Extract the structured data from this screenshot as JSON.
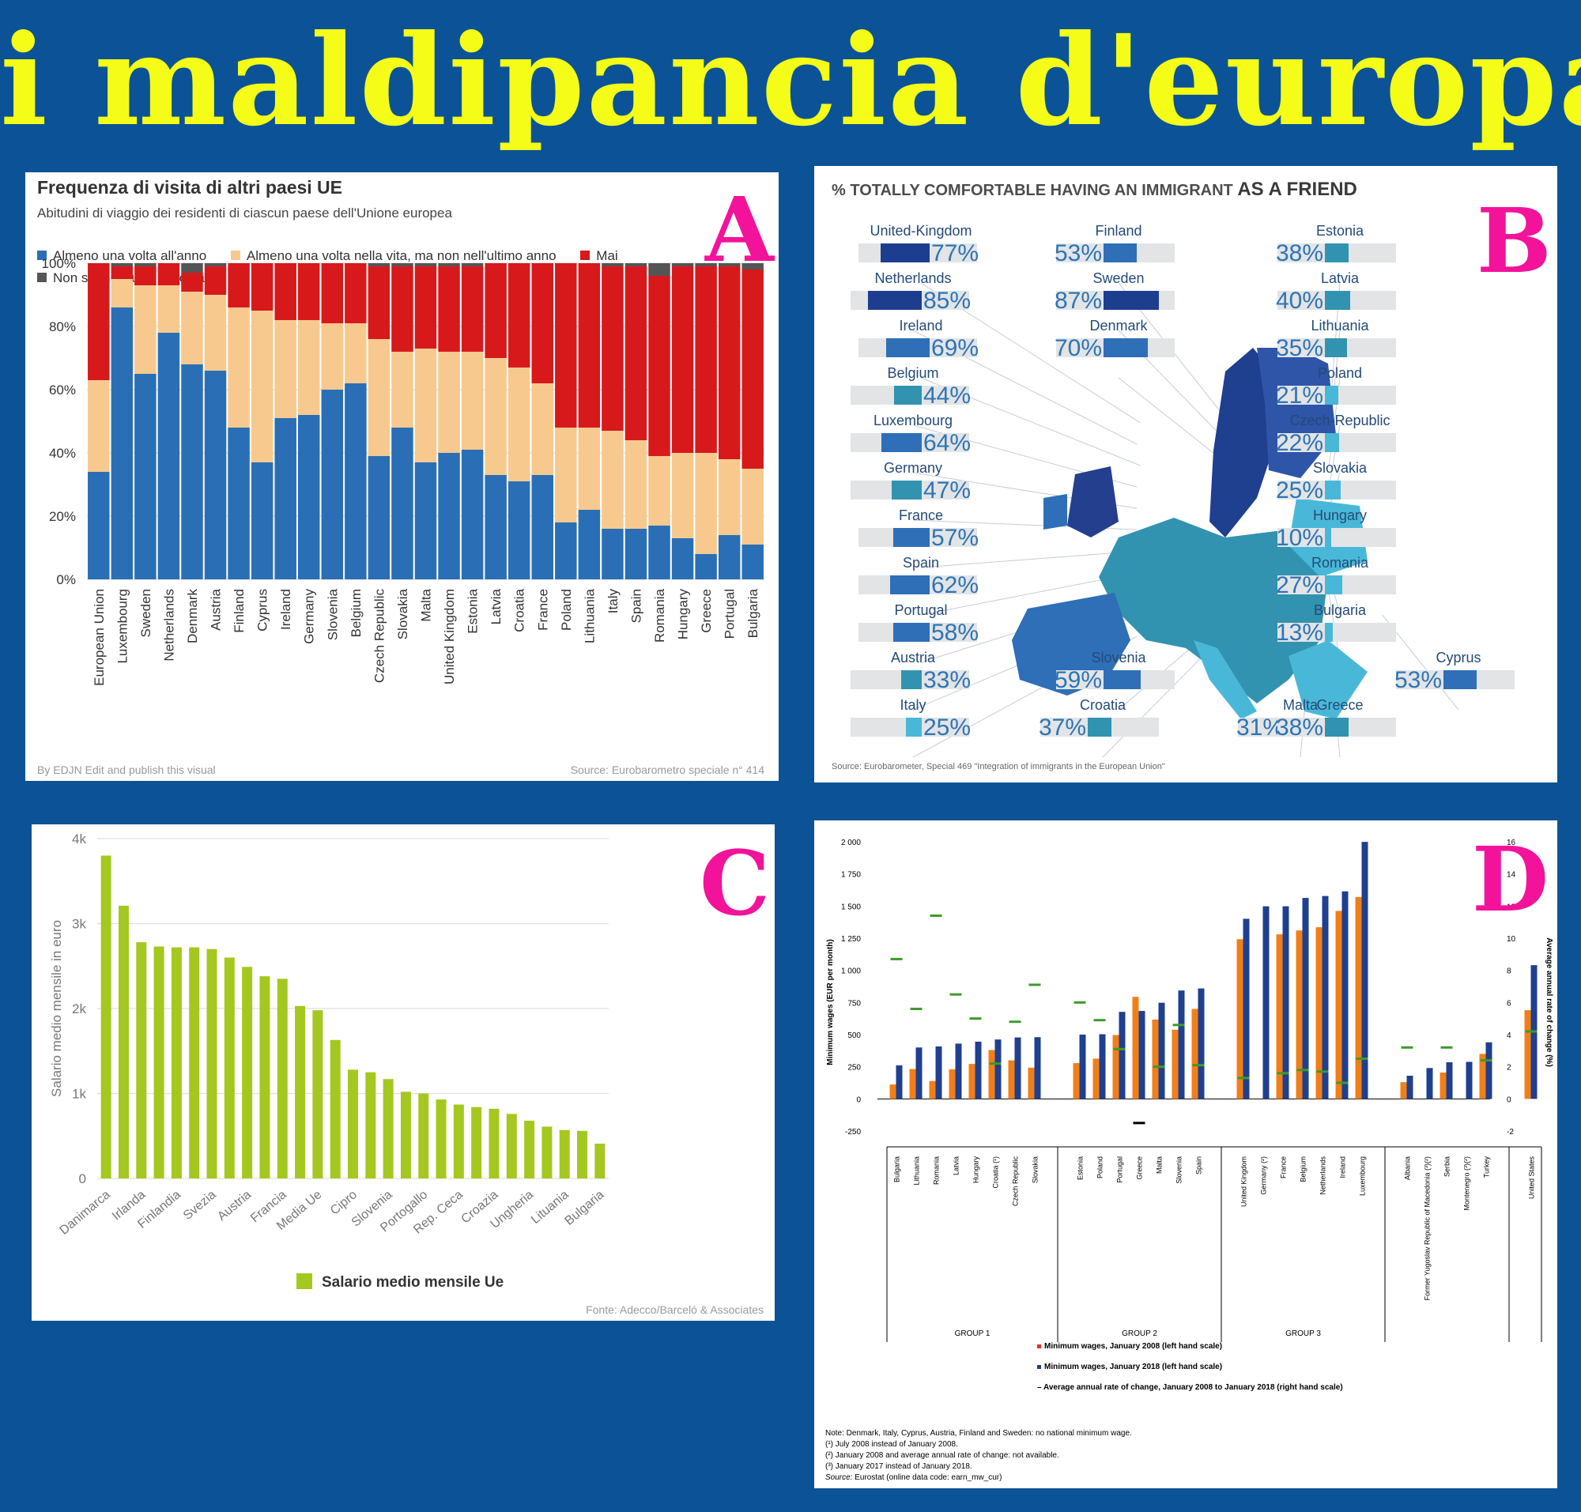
{
  "page": {
    "title": "i maldipancia d'europa",
    "panel_letters": [
      "A",
      "B",
      "C",
      "D"
    ]
  },
  "panel_a": {
    "chart_data": {
      "type": "bar",
      "stacked": true,
      "title": "Frequenza di visita di altri paesi UE",
      "subtitle": "Abitudini di viaggio dei residenti di ciascun paese dell'Unione europea",
      "ylim": [
        0,
        100
      ],
      "yticks": [
        "0%",
        "20%",
        "40%",
        "60%",
        "80%",
        "100%"
      ],
      "legend_position": "top",
      "categories": [
        "European Union",
        "Luxembourg",
        "Sweden",
        "Netherlands",
        "Denmark",
        "Austria",
        "Finland",
        "Cyprus",
        "Ireland",
        "Germany",
        "Slovenia",
        "Belgium",
        "Czech Republic",
        "Slovakia",
        "Malta",
        "United Kingdom",
        "Estonia",
        "Latvia",
        "Croatia",
        "France",
        "Poland",
        "Lithuania",
        "Italy",
        "Spain",
        "Romania",
        "Hungary",
        "Greece",
        "Portugal",
        "Bulgaria"
      ],
      "series": [
        {
          "name": "Almeno una volta all'anno",
          "color": "#2a6fb5",
          "values": [
            34,
            86,
            65,
            78,
            68,
            66,
            48,
            37,
            51,
            52,
            60,
            62,
            39,
            48,
            37,
            40,
            41,
            33,
            31,
            33,
            18,
            22,
            16,
            16,
            17,
            13,
            8,
            14,
            11
          ]
        },
        {
          "name": "Almeno una volta nella vita, ma non nell'ultimo anno",
          "color": "#f7c98e",
          "values": [
            29,
            9,
            28,
            15,
            23,
            24,
            38,
            48,
            31,
            30,
            21,
            19,
            37,
            24,
            36,
            32,
            31,
            37,
            36,
            29,
            30,
            26,
            31,
            28,
            22,
            27,
            32,
            24,
            24
          ]
        },
        {
          "name": "Mai",
          "color": "#d7191c",
          "values": [
            37,
            4,
            6,
            7,
            6,
            9,
            14,
            15,
            18,
            18,
            19,
            19,
            23,
            27,
            26,
            27,
            27,
            30,
            33,
            38,
            52,
            52,
            52,
            55,
            57,
            59,
            59,
            61,
            63
          ]
        },
        {
          "name": "Non so, nessuna risposta",
          "color": "#555555",
          "values": [
            0,
            1,
            1,
            0,
            3,
            1,
            0,
            0,
            0,
            0,
            0,
            0,
            1,
            1,
            1,
            1,
            1,
            0,
            0,
            0,
            0,
            0,
            1,
            1,
            4,
            1,
            1,
            1,
            2
          ]
        }
      ]
    },
    "footer_left": "By EDJN   Edit and publish this visual",
    "footer_right": "Source:  Eurobarometro speciale n° 414"
  },
  "panel_b": {
    "title_part1": "% TOTALLY COMFORTABLE HAVING AN IMMIGRANT ",
    "title_part2": "AS A FRIEND",
    "source": "Source: Eurobarometer, Special 469 \"Integration of immigrants in the European Union\"",
    "chart_data": {
      "type": "bar",
      "title": "% TOTALLY COMFORTABLE HAVING AN IMMIGRANT AS A FRIEND",
      "ylim": [
        0,
        100
      ],
      "categories": [
        "United-Kingdom",
        "Netherlands",
        "Ireland",
        "Belgium",
        "Luxembourg",
        "Germany",
        "France",
        "Spain",
        "Portugal",
        "Austria",
        "Italy",
        "Finland",
        "Sweden",
        "Denmark",
        "Slovenia",
        "Croatia",
        "Malta",
        "Estonia",
        "Latvia",
        "Lithuania",
        "Poland",
        "Czech-Republic",
        "Slovakia",
        "Hungary",
        "Romania",
        "Bulgaria",
        "Cyprus",
        "Greece"
      ],
      "values": [
        77,
        85,
        69,
        44,
        64,
        47,
        57,
        62,
        58,
        33,
        25,
        53,
        87,
        70,
        59,
        37,
        31,
        38,
        40,
        35,
        21,
        22,
        25,
        10,
        27,
        13,
        53,
        38
      ],
      "labels": [
        "77%",
        "85%",
        "69%",
        "44%",
        "64%",
        "47%",
        "57%",
        "62%",
        "58%",
        "33%",
        "25%",
        "53%",
        "87%",
        "70%",
        "59%",
        "37%",
        "31%",
        "38%",
        "40%",
        "35%",
        "21%",
        "22%",
        "25%",
        "10%",
        "27%",
        "13%",
        "53%",
        "38%"
      ]
    },
    "colors": {
      "dark": "#1d3d8f",
      "mid": "#2e6fb8",
      "teal": "#3293b0",
      "light": "#49b8d8",
      "track": "#e2e4e6"
    }
  },
  "panel_c": {
    "chart_data": {
      "type": "bar",
      "ylabel": "Salario medio mensile in euro",
      "yticks": [
        "0",
        "1k",
        "2k",
        "3k",
        "4k"
      ],
      "ylim": [
        0,
        4000
      ],
      "categories": [
        "Danimarca",
        "",
        "Irlanda",
        "",
        "Finlandia",
        "",
        "Svezia",
        "",
        "Austria",
        "",
        "Francia",
        "",
        "Media Ue",
        "",
        "Cipro",
        "",
        "Slovenia",
        "",
        "Portogallo",
        "",
        "Rep. Ceca",
        "",
        "Croazia",
        "",
        "Ungheria",
        "",
        "Lituania",
        "",
        "Bulgaria"
      ],
      "series": [
        {
          "name": "Salario medio mensile Ue",
          "color": "#a4c820",
          "values": [
            3800,
            3210,
            2780,
            2730,
            2720,
            2720,
            2700,
            2600,
            2490,
            2380,
            2350,
            2030,
            1980,
            1630,
            1280,
            1250,
            1170,
            1020,
            1000,
            930,
            870,
            840,
            820,
            760,
            680,
            610,
            570,
            560,
            410
          ]
        }
      ]
    },
    "source": "Fonte: Adecco/Barceló & Associates"
  },
  "panel_d": {
    "chart_data": {
      "type": "bar",
      "ylabel_left": "Minimum wages (EUR per month)",
      "ylabel_right": "Average annual rate of change (%)",
      "left_ylim": [
        -250,
        2000
      ],
      "right_ylim": [
        -2,
        16
      ],
      "left_ticks": [
        "-250",
        "0",
        "250",
        "500",
        "750",
        "1 000",
        "1 250",
        "1 500",
        "1 750",
        "2 000"
      ],
      "right_ticks": [
        "-2",
        "0",
        "2",
        "4",
        "6",
        "8",
        "10",
        "12",
        "14",
        "16"
      ],
      "groups": [
        "GROUP 1",
        "GROUP 2",
        "GROUP 3"
      ],
      "categories": [
        "Bulgaria",
        "Lithuania",
        "Romania",
        "Latvia",
        "Hungary",
        "Croatia (¹)",
        "Czech Republic",
        "Slovakia",
        "Estonia",
        "Poland",
        "Portugal",
        "Greece",
        "Malta",
        "Slovenia",
        "Spain",
        "United Kingdom",
        "Germany (²)",
        "France",
        "Belgium",
        "Netherlands",
        "Ireland",
        "Luxembourg",
        "Albania",
        "Former Yugoslav Republic of Macedonia (³)(²)",
        "Serbia",
        "Montenegro (³)(²)",
        "Turkey",
        "United States"
      ],
      "series": [
        {
          "name": "Minimum wages, January 2008 (left hand scale)",
          "color": "#f07f1a",
          "values": [
            112,
            232,
            139,
            230,
            272,
            380,
            300,
            243,
            278,
            313,
            497,
            794,
            617,
            538,
            700,
            1242,
            null,
            1280,
            1310,
            1335,
            1462,
            1570,
            130,
            null,
            205,
            null,
            350,
            690
          ]
        },
        {
          "name": "Minimum wages, January 2018 (left hand scale)",
          "color": "#1f3f8f",
          "values": [
            261,
            400,
            408,
            430,
            445,
            462,
            478,
            480,
            500,
            503,
            677,
            684,
            748,
            843,
            859,
            1401,
            1498,
            1498,
            1563,
            1578,
            1614,
            1999,
            180,
            240,
            285,
            288,
            440,
            1040
          ]
        },
        {
          "name": "Average annual rate of change, January 2008 to January 2018 (right hand scale)",
          "color": "#3d9b2a",
          "values": [
            8.7,
            5.6,
            11.4,
            6.5,
            5.0,
            2.2,
            4.8,
            7.1,
            6.0,
            4.9,
            3.1,
            -1.5,
            2.0,
            4.6,
            2.1,
            1.3,
            null,
            1.6,
            1.8,
            1.7,
            1.0,
            2.5,
            3.2,
            null,
            3.2,
            null,
            2.4,
            4.2
          ]
        }
      ]
    },
    "legend_orange": "Minimum wages, January 2008 (left hand scale)",
    "legend_blue": "Minimum wages, January 2018 (left hand scale)",
    "legend_green": "Average annual rate of change, January 2008 to January 2018 (right hand scale)",
    "note_lines": [
      "Note: Denmark, Italy, Cyprus, Austria, Finland and Sweden: no national minimum wage.",
      "(¹) July 2008 instead of January 2008.",
      "(²) January 2008 and average annual rate of change: not available.",
      "(³) January 2017 instead of January 2018."
    ],
    "source_label": "Source:",
    "source_text": " Eurostat (online data code: earn_mw_cur)"
  }
}
